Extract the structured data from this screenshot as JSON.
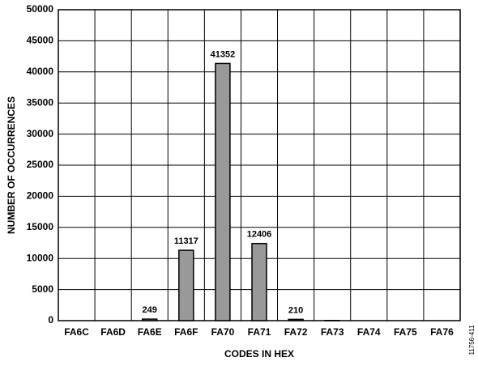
{
  "chart_data": {
    "type": "bar",
    "xlabel": "CODES IN HEX",
    "ylabel": "NUMBER OF OCCURRENCES",
    "figure_id": "11756-411",
    "categories": [
      "FA6C",
      "FA6D",
      "FA6E",
      "FA6F",
      "FA70",
      "FA71",
      "FA72",
      "FA73",
      "FA74",
      "FA75",
      "FA76"
    ],
    "values": [
      0,
      0,
      249,
      11317,
      41352,
      12406,
      210,
      30,
      0,
      0,
      0
    ],
    "value_labels": [
      null,
      null,
      "249",
      "11317",
      "41352",
      "12406",
      "210",
      null,
      null,
      null,
      null
    ],
    "color": "#999999",
    "ylim": [
      0,
      50000
    ],
    "yticks": [
      0,
      5000,
      10000,
      15000,
      20000,
      25000,
      30000,
      35000,
      40000,
      45000,
      50000
    ],
    "grid": true
  }
}
